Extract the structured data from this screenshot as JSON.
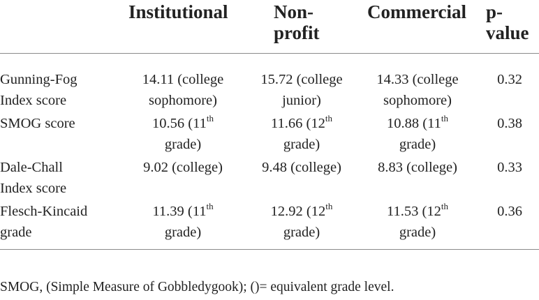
{
  "table": {
    "headers": [
      {
        "lines": [
          "",
          ""
        ]
      },
      {
        "lines": [
          "Institutional",
          ""
        ]
      },
      {
        "lines": [
          "Non-",
          "profit"
        ]
      },
      {
        "lines": [
          "Commercial",
          ""
        ]
      },
      {
        "lines": [
          "p-",
          "value"
        ]
      }
    ],
    "rows": [
      {
        "label": [
          "Gunning-Fog",
          "Index score"
        ],
        "cells": [
          {
            "l1": "14.11 (college",
            "sup": "",
            "l1_tail": "",
            "l2": "sophomore)"
          },
          {
            "l1": "15.72 (college",
            "sup": "",
            "l1_tail": "",
            "l2": "junior)"
          },
          {
            "l1": "14.33 (college",
            "sup": "",
            "l1_tail": "",
            "l2": "sophomore)"
          }
        ],
        "p": "0.32"
      },
      {
        "label": [
          "SMOG score",
          ""
        ],
        "cells": [
          {
            "l1": "10.56 (11",
            "sup": "th",
            "l2": "grade)"
          },
          {
            "l1": "11.66 (12",
            "sup": "th",
            "l2": "grade)"
          },
          {
            "l1": "10.88 (11",
            "sup": "th",
            "l2": "grade)"
          }
        ],
        "p": "0.38"
      },
      {
        "label": [
          "Dale-Chall",
          "Index score"
        ],
        "cells": [
          {
            "l1": "9.02 (college)",
            "sup": "",
            "l2": ""
          },
          {
            "l1": "9.48 (college)",
            "sup": "",
            "l2": ""
          },
          {
            "l1": "8.83 (college)",
            "sup": "",
            "l2": ""
          }
        ],
        "p": "0.33"
      },
      {
        "label": [
          "Flesch-Kincaid",
          "grade"
        ],
        "cells": [
          {
            "l1": "11.39 (11",
            "sup": "th",
            "l2": "grade)"
          },
          {
            "l1": "12.92 (12",
            "sup": "th",
            "l2": "grade)"
          },
          {
            "l1": "11.53 (12",
            "sup": "th",
            "l2": "grade)"
          }
        ],
        "p": "0.36"
      }
    ]
  },
  "footnote": "SMOG, (Simple Measure of Gobbledygook); ()= equivalent grade level."
}
